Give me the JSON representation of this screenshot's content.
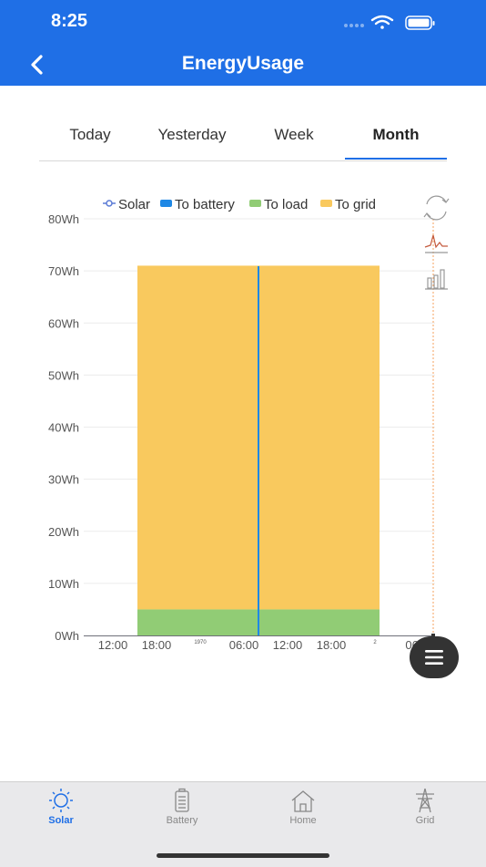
{
  "status_bar": {
    "time": "8:25"
  },
  "header": {
    "title": "EnergyUsage",
    "back_icon": "chevron-left-icon"
  },
  "tabs": [
    {
      "label": "Today",
      "active": false
    },
    {
      "label": "Yesterday",
      "active": false
    },
    {
      "label": "Week",
      "active": false
    },
    {
      "label": "Month",
      "active": true
    }
  ],
  "colors": {
    "brand": "#1f6fe6",
    "solar": "#5b7bd5",
    "to_battery": "#1e88e5",
    "to_load": "#91cc75",
    "to_grid": "#f9c95e"
  },
  "chart_data": {
    "type": "bar",
    "legend": [
      "Solar",
      "To battery",
      "To load",
      "To grid"
    ],
    "legend_position": "top",
    "y_ticks": [
      "0Wh",
      "10Wh",
      "20Wh",
      "30Wh",
      "40Wh",
      "50Wh",
      "60Wh",
      "70Wh",
      "80Wh"
    ],
    "ylim": [
      0,
      80
    ],
    "x_ticks": [
      "12:00",
      "18:00",
      "1970",
      "06:00",
      "12:00",
      "18:00",
      "2",
      "06:0"
    ],
    "series": [
      {
        "name": "To load",
        "values": [
          5
        ]
      },
      {
        "name": "To grid",
        "values": [
          66
        ]
      },
      {
        "name": "To battery",
        "values": [
          0
        ]
      }
    ],
    "stacked_total": 71,
    "grid": true,
    "toolbox_icons": [
      "restore-icon",
      "line-chart-icon",
      "bar-chart-icon"
    ]
  },
  "fab": {
    "icon": "menu-icon"
  },
  "tabbar": [
    {
      "label": "Solar",
      "icon": "sun-icon",
      "active": true
    },
    {
      "label": "Battery",
      "icon": "battery-icon",
      "active": false
    },
    {
      "label": "Home",
      "icon": "home-icon",
      "active": false
    },
    {
      "label": "Grid",
      "icon": "power-tower-icon",
      "active": false
    }
  ]
}
